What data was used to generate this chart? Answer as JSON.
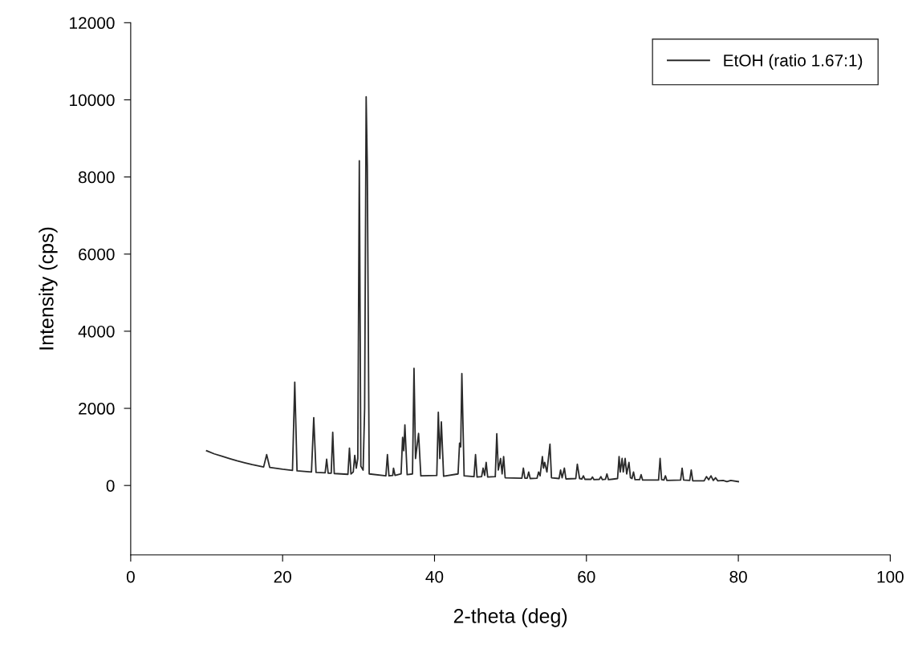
{
  "chart_data": {
    "type": "line",
    "xlabel": "2-theta (deg)",
    "ylabel": "Intensity (cps)",
    "xlim": [
      0,
      100
    ],
    "xticks": [
      0,
      20,
      40,
      60,
      80,
      100
    ],
    "ylim": [
      -1800,
      12000
    ],
    "yticks": [
      0,
      2000,
      4000,
      6000,
      8000,
      10000,
      12000
    ],
    "grid": false,
    "legend": "top right",
    "marker": "none",
    "line_style": "solid",
    "series": [
      {
        "name": "EtOH (ratio 1.67:1)",
        "color": "#2a2a2a",
        "x": [
          10,
          11,
          12,
          13,
          14,
          15,
          16,
          17.5,
          17.9,
          18.3,
          20,
          21.3,
          21.6,
          21.9,
          23.8,
          24.1,
          24.4,
          25.6,
          25.8,
          26.0,
          26.4,
          26.6,
          26.8,
          28.6,
          28.8,
          29.0,
          29.3,
          29.5,
          29.7,
          29.9,
          30.1,
          30.3,
          30.6,
          30.8,
          31.0,
          31.15,
          31.4,
          33.6,
          33.8,
          34.0,
          34.5,
          34.6,
          34.8,
          35.6,
          35.8,
          35.95,
          36.1,
          36.4,
          37.1,
          37.3,
          37.5,
          37.9,
          38.2,
          40.3,
          40.5,
          40.7,
          40.9,
          41.2,
          43.1,
          43.3,
          43.45,
          43.6,
          43.9,
          45.2,
          45.4,
          45.6,
          46.2,
          46.4,
          46.6,
          46.8,
          47.0,
          48.0,
          48.2,
          48.4,
          48.7,
          48.9,
          49.1,
          49.3,
          51.5,
          51.7,
          51.9,
          52.2,
          52.4,
          52.6,
          53.5,
          53.7,
          53.9,
          54.2,
          54.35,
          54.5,
          54.8,
          55.2,
          55.4,
          56.4,
          56.6,
          56.8,
          57.1,
          57.3,
          58.6,
          58.8,
          59.1,
          59.4,
          59.6,
          59.8,
          60.6,
          60.8,
          61.0,
          61.7,
          61.9,
          62.1,
          62.5,
          62.7,
          62.9,
          64.1,
          64.3,
          64.45,
          64.7,
          64.85,
          65.1,
          65.3,
          65.6,
          65.8,
          66.0,
          66.2,
          66.4,
          67.0,
          67.2,
          67.4,
          69.5,
          69.7,
          69.9,
          70.2,
          70.4,
          70.6,
          72.4,
          72.6,
          72.8,
          73.6,
          73.8,
          74.0,
          75.5,
          75.8,
          76.1,
          76.4,
          76.7,
          77.0,
          77.3,
          78.0,
          78.5,
          79.0,
          80
        ],
        "values": [
          900,
          820,
          760,
          700,
          640,
          590,
          540,
          480,
          800,
          470,
          420,
          390,
          2680,
          380,
          350,
          1760,
          340,
          330,
          680,
          320,
          320,
          1380,
          310,
          290,
          970,
          300,
          350,
          780,
          450,
          700,
          8420,
          500,
          400,
          2000,
          10080,
          8300,
          300,
          250,
          800,
          250,
          260,
          450,
          260,
          300,
          1250,
          900,
          1570,
          280,
          300,
          3040,
          700,
          1350,
          250,
          260,
          1900,
          700,
          1650,
          240,
          300,
          1100,
          1000,
          2900,
          250,
          230,
          800,
          220,
          230,
          450,
          260,
          600,
          220,
          230,
          1340,
          400,
          700,
          300,
          750,
          200,
          190,
          450,
          190,
          190,
          350,
          180,
          190,
          350,
          250,
          750,
          450,
          600,
          350,
          1070,
          200,
          180,
          400,
          200,
          450,
          170,
          180,
          550,
          180,
          170,
          250,
          160,
          160,
          220,
          150,
          160,
          230,
          150,
          160,
          300,
          150,
          180,
          750,
          350,
          700,
          350,
          700,
          300,
          600,
          200,
          180,
          350,
          150,
          150,
          280,
          140,
          140,
          700,
          150,
          140,
          250,
          130,
          140,
          450,
          140,
          130,
          400,
          120,
          120,
          230,
          150,
          250,
          130,
          200,
          120,
          130,
          100,
          130,
          100
        ]
      }
    ]
  }
}
